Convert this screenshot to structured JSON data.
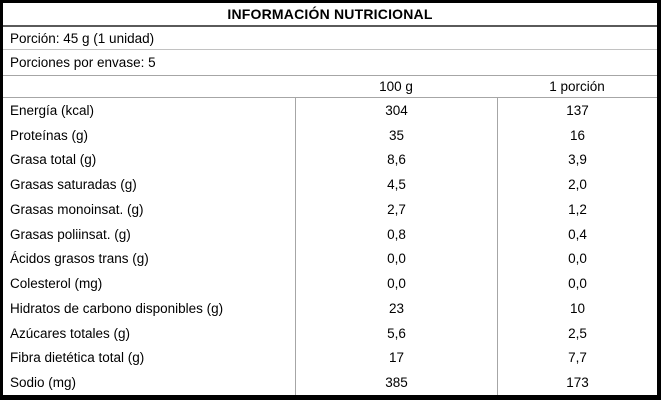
{
  "table": {
    "title": "INFORMACIÓN NUTRICIONAL",
    "serving": {
      "portion": "Porción: 45 g (1 unidad)",
      "per_package": "Porciones por envase: 5"
    },
    "columns": {
      "label": "",
      "per_100g": "100 g",
      "per_portion": "1 porción"
    },
    "rows": [
      {
        "label": "Energía (kcal)",
        "per_100g": "304",
        "per_portion": "137"
      },
      {
        "label": "Proteínas (g)",
        "per_100g": "35",
        "per_portion": "16"
      },
      {
        "label": "Grasa total (g)",
        "per_100g": "8,6",
        "per_portion": "3,9"
      },
      {
        "label": "Grasas saturadas (g)",
        "per_100g": "4,5",
        "per_portion": "2,0"
      },
      {
        "label": "Grasas monoinsat. (g)",
        "per_100g": "2,7",
        "per_portion": "1,2"
      },
      {
        "label": "Grasas poliinsat. (g)",
        "per_100g": "0,8",
        "per_portion": "0,4"
      },
      {
        "label": "Ácidos grasos trans (g)",
        "per_100g": "0,0",
        "per_portion": "0,0"
      },
      {
        "label": "Colesterol (mg)",
        "per_100g": "0,0",
        "per_portion": "0,0"
      },
      {
        "label": "Hidratos de carbono disponibles (g)",
        "per_100g": "23",
        "per_portion": "10"
      },
      {
        "label": "Azúcares totales (g)",
        "per_100g": "5,6",
        "per_portion": "2,5"
      },
      {
        "label": "Fibra dietética total (g)",
        "per_100g": "17",
        "per_portion": "7,7"
      },
      {
        "label": "Sodio (mg)",
        "per_100g": "385",
        "per_portion": "173"
      }
    ],
    "colors": {
      "outer_border": "#000000",
      "title_separator": "#5a5a5a",
      "grid_line": "#a6a6a6",
      "text": "#000000",
      "background": "#ffffff"
    }
  }
}
